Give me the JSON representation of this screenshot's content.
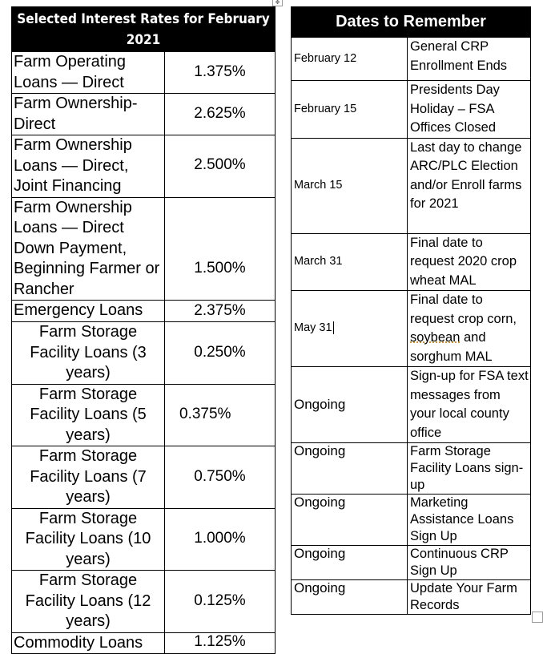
{
  "rates_table": {
    "title": "Selected Interest Rates for February 2021",
    "rows": [
      {
        "name": "Farm Operating Loans — Direct",
        "rate": "1.375%"
      },
      {
        "name": "Farm Ownership-Direct",
        "rate": "2.625%"
      },
      {
        "name": "Farm Ownership Loans — Direct, Joint Financing",
        "rate": "2.500%"
      },
      {
        "name": "Farm Ownership Loans — Direct Down Payment, Beginning Farmer or Rancher",
        "rate": "1.500%"
      },
      {
        "name": "Emergency Loans",
        "rate": "2.375%"
      },
      {
        "name": "Farm Storage Facility Loans (3 years)",
        "rate": "0.250%"
      },
      {
        "name": "Farm Storage Facility Loans (5 years)",
        "rate": "0.375%"
      },
      {
        "name": "Farm Storage Facility Loans (7 years)",
        "rate": "0.750%"
      },
      {
        "name": "Farm Storage Facility Loans (10 years)",
        "rate": "1.000%"
      },
      {
        "name": "Farm Storage Facility Loans (12 years)",
        "rate": "0.125%"
      },
      {
        "name": "Commodity Loans",
        "rate": "1.125%"
      }
    ]
  },
  "dates_table": {
    "title": "Dates to Remember",
    "rows": [
      {
        "date": "February 12",
        "event": "General CRP Enrollment Ends"
      },
      {
        "date": "February 15",
        "event": "Presidents Day Holiday – FSA Offices Closed"
      },
      {
        "date": "March 15",
        "event": "Last day to change ARC/PLC Election and/or Enroll farms for 2021"
      },
      {
        "date": "March 31",
        "event": "Final date to request 2020 crop wheat MAL"
      },
      {
        "date": "May 31",
        "event_before": "Final date to request crop corn,",
        "event_flagged": "soybean",
        "event_after": "and sorghum MAL"
      },
      {
        "date": "Ongoing",
        "event": "Sign-up for FSA text messages from your local county office"
      },
      {
        "date": "Ongoing",
        "event": "Farm Storage Facility Loans sign-up"
      },
      {
        "date": "Ongoing",
        "event": "Marketing Assistance Loans Sign Up"
      },
      {
        "date": "Ongoing",
        "event": "Continuous CRP Sign Up"
      },
      {
        "date": "Ongoing",
        "event": "Update Your Farm Records"
      }
    ]
  }
}
